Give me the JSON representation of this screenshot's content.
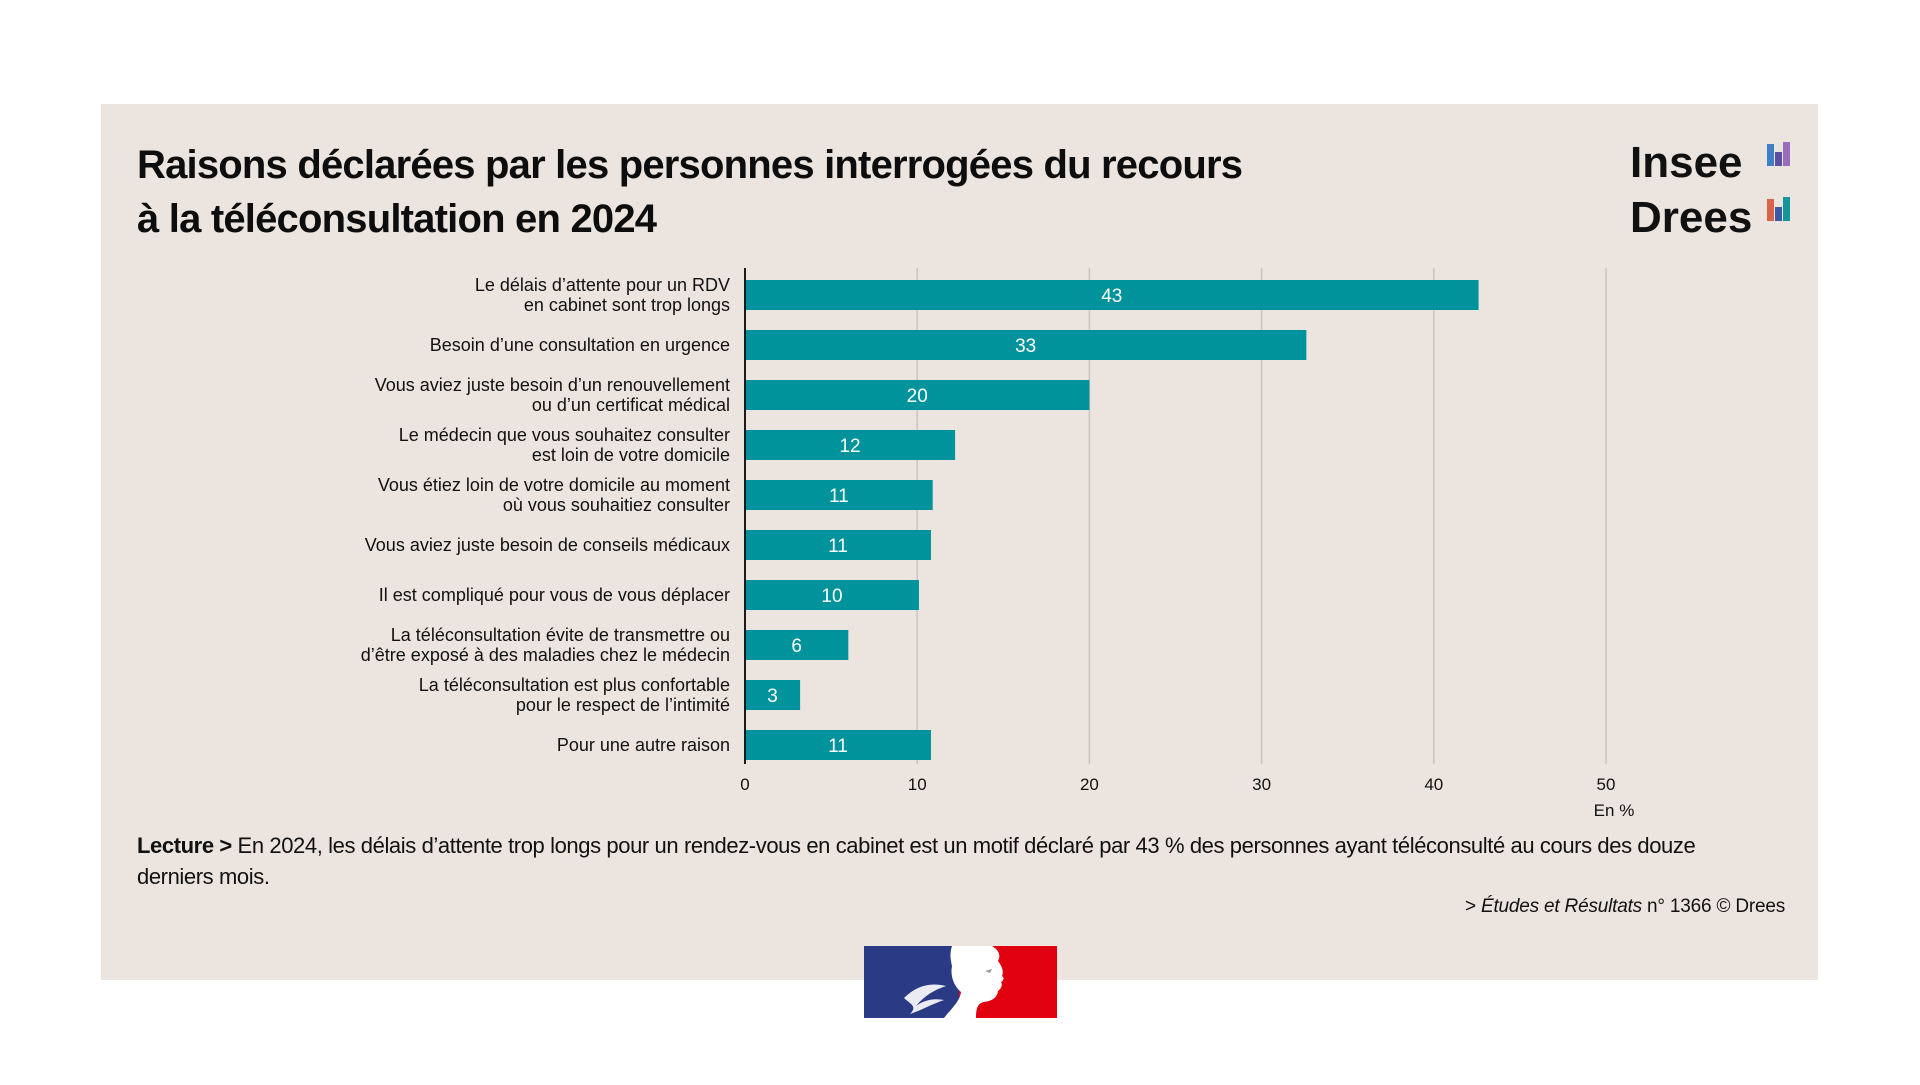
{
  "title": {
    "line1": "Raisons déclarées par les personnes interrogées du recours",
    "line2": "à la téléconsultation en 2024"
  },
  "brand": {
    "insee": "Insee",
    "drees": "Drees",
    "insee_bar_colors": [
      "#3f7fc6",
      "#5b4ea3",
      "#9a6cbd"
    ],
    "drees_bar_colors": [
      "#d9644a",
      "#3a5aa6",
      "#13979c"
    ]
  },
  "chart_data": {
    "type": "bar",
    "orientation": "horizontal",
    "title": "Raisons déclarées par les personnes interrogées du recours à la téléconsultation en 2024",
    "categories": [
      [
        "Le délais d’attente pour un RDV",
        "en cabinet sont trop longs"
      ],
      [
        "Besoin d’une consultation en urgence"
      ],
      [
        "Vous aviez juste besoin d’un renouvellement",
        "ou d’un certificat médical"
      ],
      [
        "Le médecin que vous souhaitez consulter",
        "est loin de votre domicile"
      ],
      [
        "Vous étiez loin de votre domicile au moment",
        "où vous souhaitiez consulter"
      ],
      [
        "Vous aviez juste besoin de conseils médicaux"
      ],
      [
        "Il est compliqué pour vous de vous déplacer"
      ],
      [
        "La téléconsultation évite de transmettre ou",
        "d’être exposé à des maladies chez le médecin"
      ],
      [
        "La téléconsultation est plus confortable",
        "pour le respect de l’intimité"
      ],
      [
        "Pour une autre raison"
      ]
    ],
    "values": [
      42.6,
      32.6,
      20.0,
      12.2,
      10.9,
      10.8,
      10.1,
      6.0,
      3.2,
      10.8
    ],
    "data_labels": [
      "43",
      "33",
      "20",
      "12",
      "11",
      "11",
      "10",
      "6",
      "3",
      "11"
    ],
    "xlabel": "En %",
    "ylabel": "",
    "xlim": [
      0,
      50
    ],
    "xticks": [
      0,
      10,
      20,
      30,
      40,
      50
    ],
    "grid": true,
    "legend": "none",
    "colors": {
      "bar": "#00939b",
      "grid": "#c9c4c0",
      "axis": "#1a1a1a",
      "label": "#ffffff"
    }
  },
  "reading": {
    "lead": "Lecture >",
    "text": " En 2024, les délais d’attente trop longs pour un rendez-vous en cabinet est un motif déclaré par 43 % des personnes ayant téléconsulté au cours des douze derniers mois."
  },
  "source": {
    "prefix": "> ",
    "publication": "Études et Résultats",
    "suffix": " n° 1366 © Drees"
  },
  "footer_logo": "republique-francaise-marianne-logo"
}
